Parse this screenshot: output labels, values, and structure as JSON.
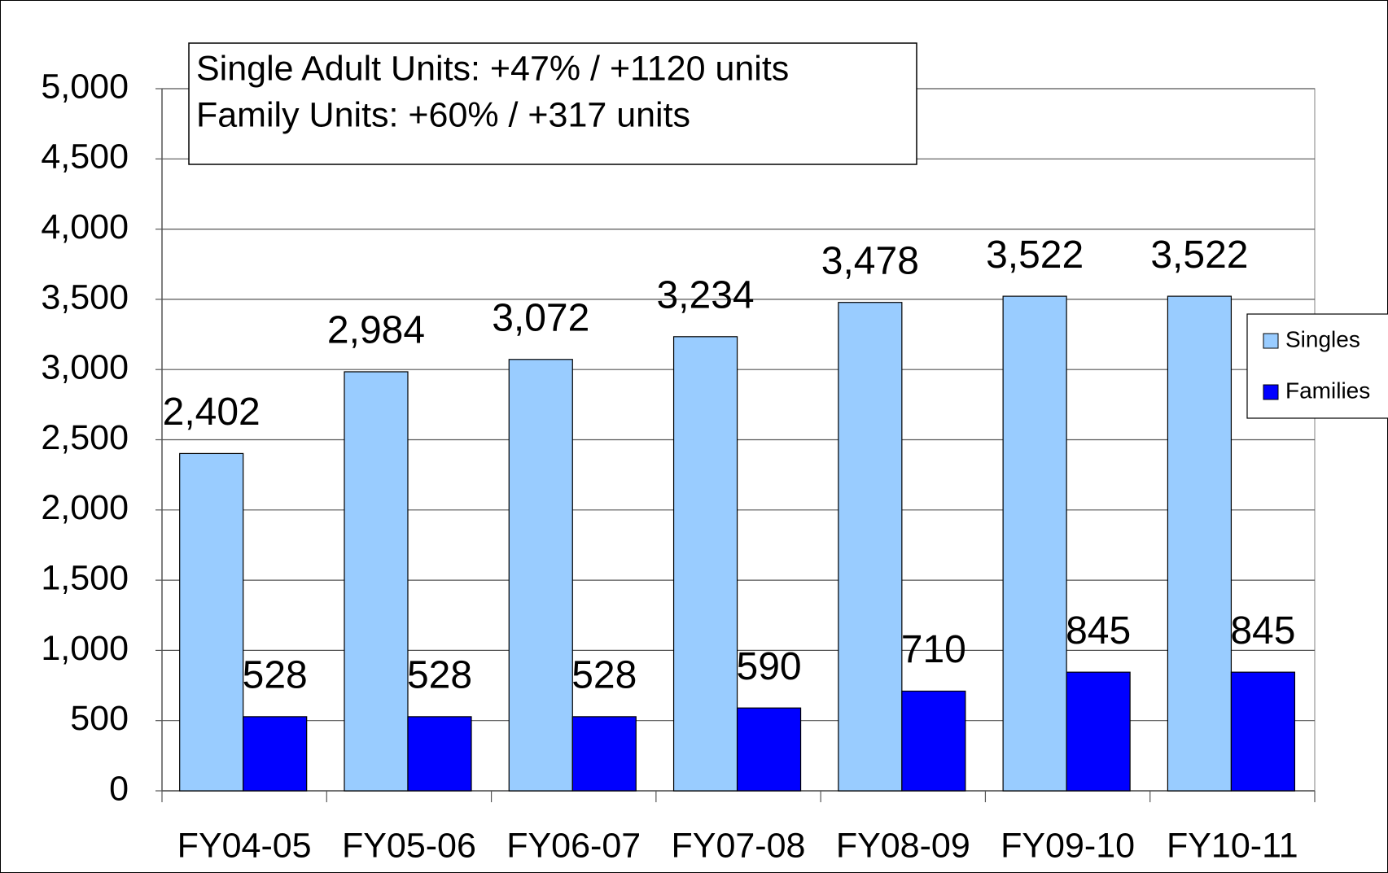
{
  "chart_data": {
    "type": "bar",
    "annotations": [
      "Single Adult Units: +47% / +1120 units",
      "Family Units: +60% / +317 units"
    ],
    "categories": [
      "FY04-05",
      "FY05-06",
      "FY06-07",
      "FY07-08",
      "FY08-09",
      "FY09-10",
      "FY10-11"
    ],
    "series": [
      {
        "name": "Singles",
        "color": "#99ccff",
        "values": [
          2402,
          2984,
          3072,
          3234,
          3478,
          3522,
          3522
        ],
        "value_labels": [
          "2,402",
          "2,984",
          "3,072",
          "3,234",
          "3,478",
          "3,522",
          "3,522"
        ]
      },
      {
        "name": "Families",
        "color": "#0000ff",
        "values": [
          528,
          528,
          528,
          590,
          710,
          845,
          845
        ]
      }
    ],
    "ylim": [
      0,
      5000
    ],
    "yticks": [
      0,
      500,
      {
        "value": 1000,
        "label": "1,000"
      },
      {
        "value": 1500,
        "label": "1,500"
      },
      {
        "value": 2000,
        "label": "2,000"
      },
      {
        "value": 2500,
        "label": "2,500"
      },
      {
        "value": 3000,
        "label": "3,000"
      },
      {
        "value": 3500,
        "label": "3,500"
      },
      {
        "value": 4000,
        "label": "4,000"
      },
      {
        "value": 4500,
        "label": "4,500"
      },
      {
        "value": 5000,
        "label": "5,000"
      }
    ],
    "grid": true,
    "legend": "right"
  }
}
